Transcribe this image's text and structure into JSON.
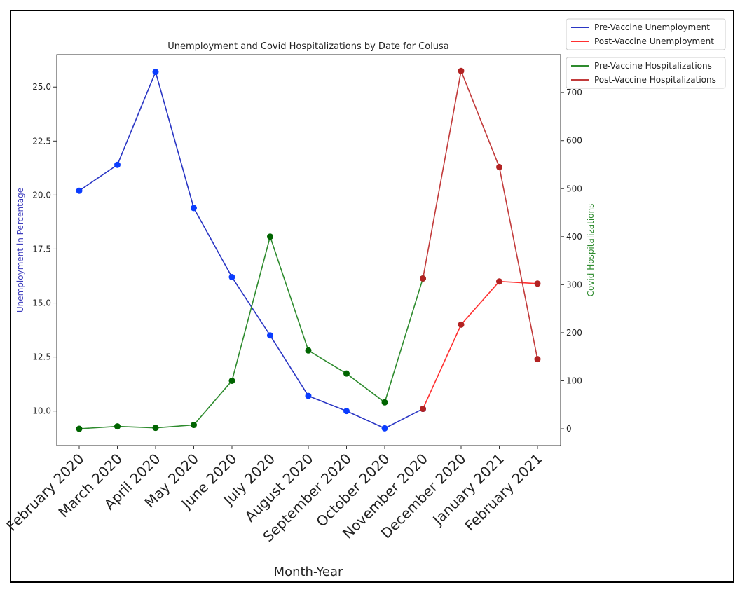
{
  "chart_data": {
    "type": "line",
    "title": "Unemployment and Covid Hospitalizations by Date for Colusa",
    "xlabel": "Month-Year",
    "ylabel": "Unemployment in Percentage",
    "ylabel_color": "#3b3bbd",
    "y2label": "Covid Hospitalizations",
    "y2label_color": "#2e8b2e",
    "categories": [
      "February 2020",
      "March 2020",
      "April 2020",
      "May 2020",
      "June 2020",
      "July 2020",
      "August 2020",
      "September 2020",
      "October 2020",
      "November 2020",
      "December 2020",
      "January 2021",
      "February 2021"
    ],
    "series": [
      {
        "name": "Pre-Vaccine Unemployment",
        "color": "#2a36c4",
        "marker_color": "#0a3cff",
        "values": [
          20.2,
          21.4,
          25.7,
          19.4,
          16.2,
          13.5,
          10.7,
          10.0,
          9.2,
          10.1,
          null,
          null,
          null
        ]
      },
      {
        "name": "Post-Vaccine Unemployment",
        "color": "#ff3030",
        "marker_color": "#b22222",
        "values": [
          null,
          null,
          null,
          null,
          null,
          null,
          null,
          null,
          null,
          10.1,
          14.0,
          16.0,
          15.9
        ]
      },
      {
        "name": "Pre-Vaccine Hospitalizations",
        "color": "#2e8b2e",
        "marker_color": "#006400",
        "axis": "y2",
        "values": [
          0,
          5,
          2,
          8,
          100,
          400,
          163,
          115,
          55,
          313,
          null,
          null,
          null
        ]
      },
      {
        "name": "Post-Vaccine Hospitalizations",
        "color": "#c23b3b",
        "marker_color": "#b22222",
        "axis": "y2",
        "values": [
          null,
          null,
          null,
          null,
          null,
          null,
          null,
          null,
          null,
          313,
          745,
          545,
          145
        ]
      }
    ],
    "ylim": [
      8.4,
      26.5
    ],
    "yticks": [
      {
        "value": 10,
        "label": "10.0"
      },
      12.5,
      {
        "value": 15,
        "label": "15.0"
      },
      17.5,
      {
        "value": 20,
        "label": "20.0"
      },
      22.5,
      {
        "value": 25,
        "label": "25.0"
      }
    ],
    "y2lim": [
      -35,
      779
    ],
    "y2ticks": [
      0,
      100,
      200,
      300,
      400,
      500,
      600,
      700
    ],
    "legend": "upper right outside"
  }
}
